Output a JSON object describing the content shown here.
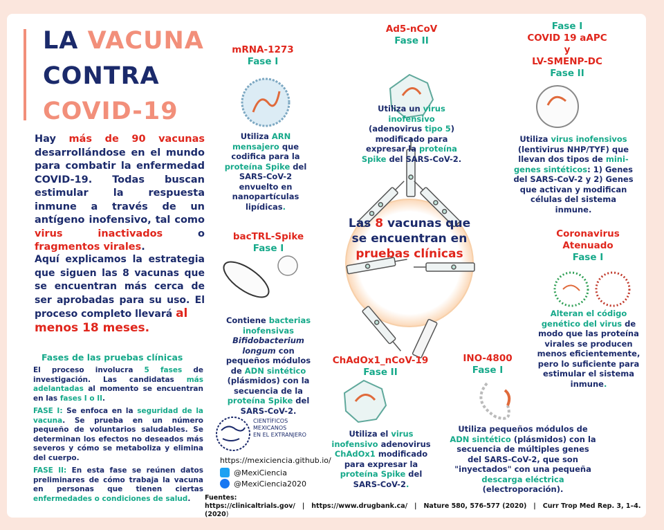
{
  "title": {
    "line1_a": "LA ",
    "line1_b": "VACUNA",
    "line2": "CONTRA",
    "line3": "COVID-19"
  },
  "intro": {
    "t1": "Hay ",
    "t2": "más de 90 vacunas",
    "t3": " desarrollándose en el mundo para combatir la enfermedad COVID-19. Todas buscan estimular la respuesta inmune a través de un antígeno inofensivo, tal como ",
    "t4": "virus inactivados",
    "t5": " o ",
    "t6": "fragmentos virales",
    "t7": "."
  },
  "intro2": {
    "t1": "Aquí explicamos la estrategia que siguen las 8 vacunas que se encuentran más cerca de ser aprobadas para su uso. El proceso completo llevará ",
    "t2": "al",
    "t3": "menos 18 meses."
  },
  "phases": {
    "heading": "Fases de las pruebas clínicas",
    "p1": "El proceso involucra ",
    "p2": "5 fases",
    "p3": " de investigación. Las candidatas ",
    "p4": "más adelantadas",
    "p5": " al momento se encuentran en las ",
    "p6": "fases I o II",
    "p7": ".",
    "f1_label": "FASE I:",
    "f1_a": " Se enfoca en la ",
    "f1_b": "seguridad de la vacuna",
    "f1_c": ". Se prueba en un número pequeño de voluntarios saludables. Se determinan los efectos no deseados más severos y cómo se metaboliza y elimina del cuerpo.",
    "f2_label": "FASE II:",
    "f2_a": " En esta fase se reúnen datos preliminares de cómo trabaja la vacuna en personas que tienen ciertas ",
    "f2_b": "enfermedades o condiciones de salud",
    "f2_c": "."
  },
  "hub": {
    "t1": "Las ",
    "t2": "8",
    "t3": " vacunas que se encuentran en",
    "t4": "pruebas clínicas"
  },
  "vaccines": {
    "mrna": {
      "name": "mRNA-1273",
      "phase": "Fase I",
      "d1": "Utiliza ",
      "d2": "ARN mensajero",
      "d3": " que codifica para la ",
      "d4": "proteína Spike",
      "d5": " del SARS-CoV-2 envuelto en nanopartículas lipídicas",
      "d6": "."
    },
    "ad5": {
      "name": "Ad5-nCoV",
      "phase": "Fase II",
      "d1": "Utiliza un ",
      "d2": "virus inofensivo",
      "d3": " (adenovirus ",
      "d4": "tipo 5",
      "d5": ") modificado para expresar la ",
      "d6": "proteína Spike",
      "d7": " del SARS-CoV-2."
    },
    "aapc": {
      "phase1": "Fase I",
      "name1": "COVID 19 aAPC",
      "y": "y",
      "name2": "LV-SMENP-DC",
      "phase2": "Fase II",
      "d1": "Utiliza ",
      "d2": "virus inofensivos",
      "d3": " (lentivirus NHP/TYF) que llevan dos tipos de ",
      "d4": "mini-genes sintéticos",
      "d5": ": 1) Genes del SARS-CoV-2 y 2) Genes que activan y modifican células del sistema inmune."
    },
    "bactrl": {
      "name": "bacTRL-Spike",
      "phase": "Fase I",
      "d1": "Contiene ",
      "d2": "bacterias inofensivas",
      "d3": "Bifidobacterium longum",
      "d4": " con pequeños módulos de ",
      "d5": "ADN sintético",
      "d6": " (plásmidos) con la secuencia de la ",
      "d7": "proteína Spike",
      "d8": " del SARS-CoV-2."
    },
    "corona": {
      "name1": "Coronavirus",
      "name2": "Atenuado",
      "phase": "Fase I",
      "d1": "Alteran el código genético del virus",
      "d2": " de modo que las proteína virales se producen menos eficientemente, pero lo suficiente para estimular el sistema inmune",
      "d3": "."
    },
    "chad": {
      "name": "ChAdOx1_nCoV-19",
      "phase": "Fase II",
      "d1": "Utiliza el ",
      "d2": "virus inofensivo",
      "d3": " adenovirus ",
      "d4": "ChAdOx1",
      "d5": " modificado para expresar la ",
      "d6": "proteína Spike",
      "d7": " del SARS-CoV-2",
      "d8": "."
    },
    "ino": {
      "name": "INO-4800",
      "phase": "Fase I",
      "d1": "Utiliza  pequeños módulos de ",
      "d2": "ADN sintético",
      "d3": " (plásmidos) con la secuencia de múltiples genes del SARS-CoV-2, que son \"inyectados\" con una pequeña ",
      "d4": "descarga eléctrica",
      "d5": " (electroporación)."
    }
  },
  "org": {
    "name1": "CIENTÍFICOS",
    "name2": "MEXICANOS",
    "name3": "EN EL EXTRANJERO",
    "url": "https://mexiciencia.github.io/",
    "twitter": "@MexiCiencia",
    "facebook": "@MexiCiencia2020"
  },
  "sources": {
    "label": "Fuentes:",
    "s1": "https://clinicaltrials.gov/",
    "sep": "|",
    "s2": "https://www.drugbank.ca/",
    "s3": "Nature 580, 576-577 (2020)",
    "s4": "Curr Trop Med Rep. 3, 1–4.(2020",
    "s4end": ")"
  },
  "colors": {
    "navy": "#1b2a6b",
    "salmon": "#f28f7a",
    "red": "#e0261c",
    "teal": "#16a98a",
    "background": "#fbe6dd"
  }
}
